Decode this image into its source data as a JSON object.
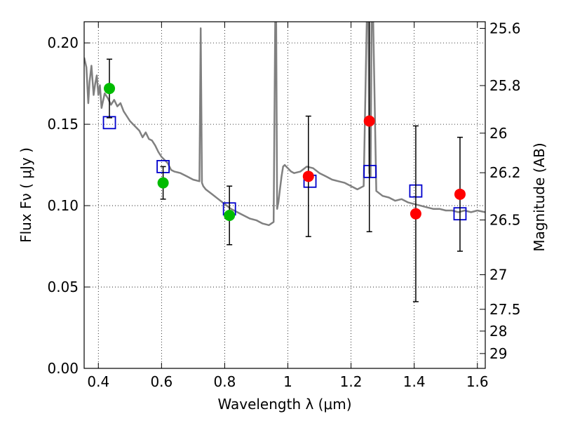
{
  "chart_data": {
    "type": "scatter",
    "xlabel": "Wavelength  λ (μm)",
    "ylabel": "Flux  Fν  ( μJy )",
    "y2label": "Magnitude (AB)",
    "xlim": [
      0.355,
      1.625
    ],
    "ylim": [
      0.0,
      0.213
    ],
    "grid": true,
    "x_ticks": [
      0.4,
      0.6,
      0.8,
      1.0,
      1.2,
      1.4,
      1.6
    ],
    "x_tick_labels": [
      "0.4",
      "0.6",
      "0.8",
      "1",
      "1.2",
      "1.4",
      "1.6"
    ],
    "y_ticks": [
      0.0,
      0.05,
      0.1,
      0.15,
      0.2
    ],
    "y_tick_labels": [
      "0.00",
      "0.05",
      "0.10",
      "0.15",
      "0.20"
    ],
    "y2_tick_labels": [
      "25.6",
      "25.8",
      "26",
      "26.2",
      "26.5",
      "27",
      "27.5",
      "28",
      "29"
    ],
    "colors": {
      "model": "#808080",
      "optical": "#00bb00",
      "infrared": "#ff0000",
      "model_photometry": "#0000cc",
      "errorbar": "#000000"
    },
    "series": [
      {
        "type": "line",
        "x": [
          0.355,
          0.362,
          0.368,
          0.372,
          0.378,
          0.385,
          0.39,
          0.395,
          0.4,
          0.405,
          0.41,
          0.42,
          0.43,
          0.44,
          0.45,
          0.46,
          0.47,
          0.48,
          0.49,
          0.5,
          0.51,
          0.52,
          0.53,
          0.54,
          0.55,
          0.56,
          0.57,
          0.58,
          0.59,
          0.6,
          0.61,
          0.62,
          0.63,
          0.64,
          0.66,
          0.68,
          0.7,
          0.72,
          0.724,
          0.728,
          0.732,
          0.74,
          0.76,
          0.78,
          0.8,
          0.82,
          0.84,
          0.86,
          0.88,
          0.9,
          0.92,
          0.94,
          0.955,
          0.96,
          0.963,
          0.966,
          0.97,
          0.975,
          0.98,
          0.985,
          0.99,
          1.0,
          1.01,
          1.02,
          1.04,
          1.06,
          1.08,
          1.1,
          1.12,
          1.14,
          1.16,
          1.18,
          1.2,
          1.22,
          1.24,
          1.25,
          1.255,
          1.258,
          1.262,
          1.265,
          1.27,
          1.28,
          1.3,
          1.32,
          1.34,
          1.36,
          1.38,
          1.4,
          1.42,
          1.44,
          1.46,
          1.48,
          1.5,
          1.52,
          1.54,
          1.56,
          1.58,
          1.6,
          1.625
        ],
        "y": [
          0.191,
          0.185,
          0.163,
          0.176,
          0.186,
          0.168,
          0.175,
          0.18,
          0.168,
          0.174,
          0.16,
          0.169,
          0.166,
          0.162,
          0.165,
          0.161,
          0.163,
          0.158,
          0.155,
          0.152,
          0.15,
          0.148,
          0.146,
          0.142,
          0.145,
          0.141,
          0.14,
          0.137,
          0.133,
          0.13,
          0.128,
          0.126,
          0.122,
          0.121,
          0.12,
          0.118,
          0.116,
          0.115,
          0.209,
          0.114,
          0.112,
          0.11,
          0.107,
          0.104,
          0.101,
          0.098,
          0.096,
          0.094,
          0.092,
          0.091,
          0.089,
          0.088,
          0.09,
          0.215,
          0.215,
          0.098,
          0.102,
          0.11,
          0.118,
          0.124,
          0.125,
          0.123,
          0.121,
          0.12,
          0.121,
          0.124,
          0.123,
          0.12,
          0.118,
          0.116,
          0.115,
          0.114,
          0.112,
          0.11,
          0.112,
          0.215,
          0.215,
          0.12,
          0.118,
          0.215,
          0.215,
          0.109,
          0.106,
          0.105,
          0.103,
          0.104,
          0.102,
          0.101,
          0.1,
          0.099,
          0.098,
          0.098,
          0.097,
          0.097,
          0.096,
          0.097,
          0.096,
          0.097,
          0.096
        ]
      },
      {
        "type": "scatter",
        "x": [
          0.435,
          0.605,
          0.815
        ],
        "y": [
          0.172,
          0.114,
          0.094
        ],
        "yerr": [
          0.018,
          0.01,
          0.018
        ]
      },
      {
        "type": "scatter",
        "x": [
          1.065,
          1.258,
          1.405,
          1.545
        ],
        "y": [
          0.118,
          0.152,
          0.095,
          0.107
        ],
        "yerr": [
          0.037,
          0.068,
          0.054,
          0.035
        ]
      },
      {
        "type": "scatter",
        "x": [
          0.435,
          0.605,
          0.815,
          1.07,
          1.26,
          1.405,
          1.545
        ],
        "y": [
          0.151,
          0.124,
          0.098,
          0.115,
          0.121,
          0.109,
          0.095
        ]
      }
    ]
  }
}
